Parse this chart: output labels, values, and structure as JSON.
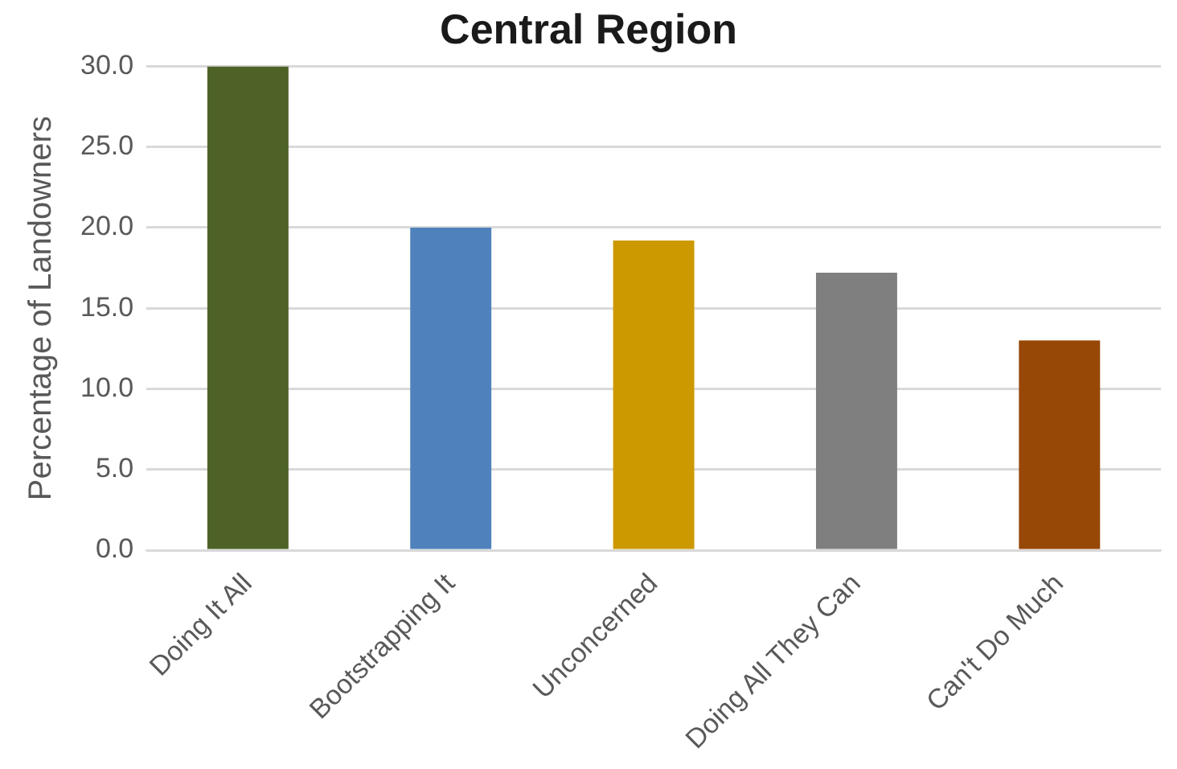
{
  "chart_data": {
    "type": "bar",
    "title": "Central Region",
    "ylabel": "Percentage of Landowners",
    "categories": [
      "Doing It All",
      "Bootstrapping It",
      "Unconcerned",
      "Doing All They Can",
      "Can't Do Much"
    ],
    "values": [
      30.0,
      20.0,
      19.2,
      17.2,
      13.0
    ],
    "colors": [
      "#4e6228",
      "#4f81bd",
      "#cc9900",
      "#7f7f7f",
      "#974806"
    ],
    "ylim": [
      0,
      30
    ],
    "yticks": [
      {
        "value": 0,
        "label": "0.0"
      },
      {
        "value": 5,
        "label": "5.0"
      },
      {
        "value": 10,
        "label": "10.0"
      },
      {
        "value": 15,
        "label": "15.0"
      },
      {
        "value": 20,
        "label": "20.0"
      },
      {
        "value": 25,
        "label": "25.0"
      },
      {
        "value": 30,
        "label": "30.0"
      }
    ],
    "grid": "y",
    "legend": false
  }
}
